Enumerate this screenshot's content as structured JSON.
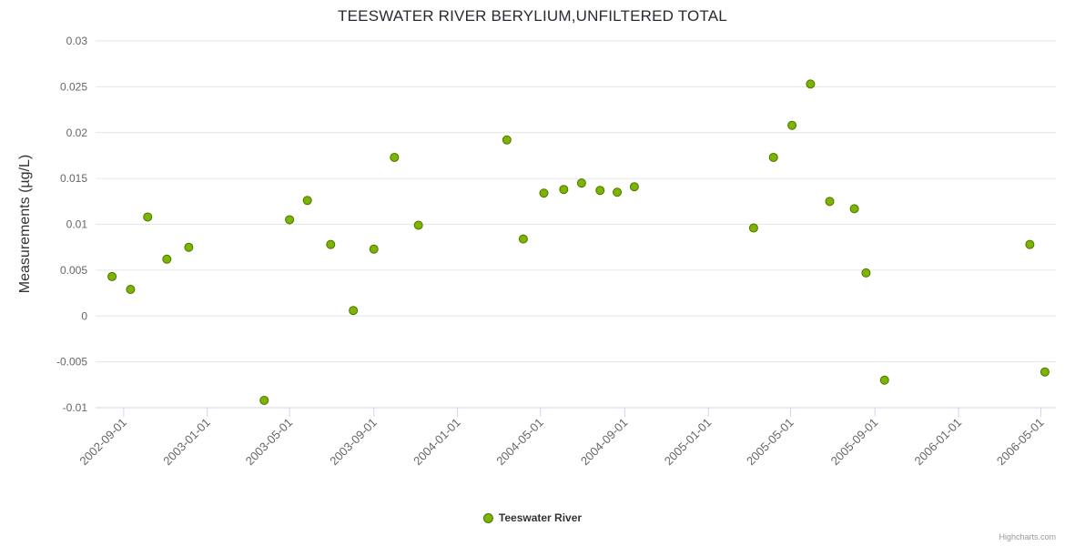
{
  "chart_data": {
    "type": "scatter",
    "title": "TEESWATER RIVER BERYLIUM,UNFILTERED TOTAL",
    "xlabel": "",
    "ylabel": "Measurements (µg/L)",
    "ylim": [
      -0.01,
      0.03
    ],
    "y_ticks": [
      -0.01,
      -0.005,
      0,
      0.005,
      0.01,
      0.015,
      0.02,
      0.025,
      0.03
    ],
    "xlim": [
      "2002-07-22",
      "2006-05-23"
    ],
    "x_ticks": [
      "2002-09-01",
      "2003-01-01",
      "2003-05-01",
      "2003-09-01",
      "2004-01-01",
      "2004-05-01",
      "2004-09-01",
      "2005-01-01",
      "2005-05-01",
      "2005-09-01",
      "2006-01-01",
      "2006-05-01"
    ],
    "grid": "horizontal",
    "legend_position": "bottom-center",
    "colors": {
      "gridline": "#e6e6e6",
      "axis_line": "#ccd6eb",
      "tick_label": "#666666",
      "title": "#2a2a33"
    },
    "series": [
      {
        "name": "Teeswater River",
        "marker_fill": "#7cb500",
        "marker_stroke": "#4e7300",
        "points": [
          [
            "2002-08-15",
            0.0043
          ],
          [
            "2002-09-11",
            0.0029
          ],
          [
            "2002-10-06",
            0.0108
          ],
          [
            "2002-11-03",
            0.0062
          ],
          [
            "2002-12-05",
            0.0075
          ],
          [
            "2003-03-25",
            -0.0092
          ],
          [
            "2003-05-01",
            0.0105
          ],
          [
            "2003-05-27",
            0.0126
          ],
          [
            "2003-06-30",
            0.0078
          ],
          [
            "2003-08-02",
            0.0006
          ],
          [
            "2003-09-01",
            0.0073
          ],
          [
            "2003-10-01",
            0.0173
          ],
          [
            "2003-11-05",
            0.0099
          ],
          [
            "2004-03-13",
            0.0192
          ],
          [
            "2004-04-06",
            0.0084
          ],
          [
            "2004-05-06",
            0.0134
          ],
          [
            "2004-06-04",
            0.0138
          ],
          [
            "2004-06-30",
            0.0145
          ],
          [
            "2004-07-27",
            0.0137
          ],
          [
            "2004-08-21",
            0.0135
          ],
          [
            "2004-09-15",
            0.0141
          ],
          [
            "2005-03-08",
            0.0096
          ],
          [
            "2005-04-06",
            0.0173
          ],
          [
            "2005-05-03",
            0.0208
          ],
          [
            "2005-05-30",
            0.0253
          ],
          [
            "2005-06-27",
            0.0125
          ],
          [
            "2005-08-02",
            0.0117
          ],
          [
            "2005-08-19",
            0.0047
          ],
          [
            "2005-09-15",
            -0.007
          ],
          [
            "2006-04-15",
            0.0078
          ],
          [
            "2006-05-07",
            -0.0061
          ]
        ]
      }
    ],
    "credit": "Highcharts.com"
  }
}
